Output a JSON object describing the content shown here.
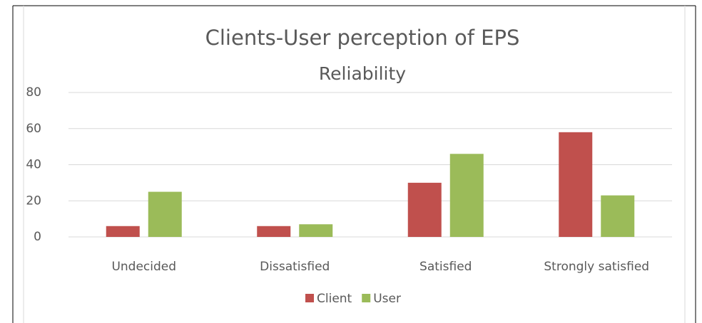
{
  "chart_data": {
    "type": "bar",
    "title": "Clients-User perception of EPS",
    "subtitle": "Reliability",
    "categories": [
      "Undecided",
      "Dissatisfied",
      "Satisfied",
      "Strongly satisfied"
    ],
    "series": [
      {
        "name": "Client",
        "color": "#c0504d",
        "values": [
          6,
          6,
          30,
          58
        ]
      },
      {
        "name": "User",
        "color": "#9bbb59",
        "values": [
          25,
          7,
          46,
          23
        ]
      }
    ],
    "ylim": [
      0,
      80
    ],
    "yticks": [
      0,
      20,
      40,
      60,
      80
    ],
    "grid": true,
    "legend": "bottom"
  }
}
